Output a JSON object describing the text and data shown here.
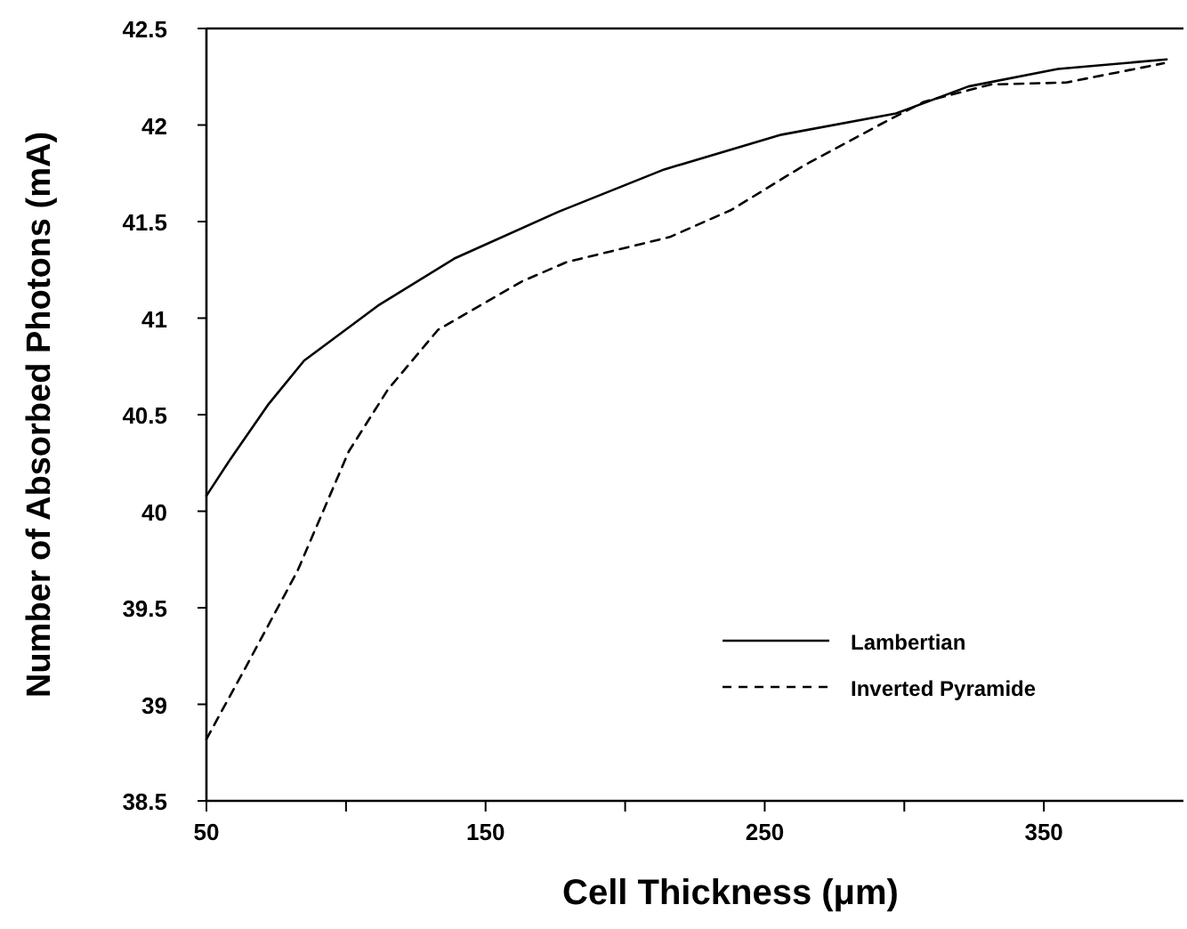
{
  "chart_data": {
    "type": "line",
    "xlabel": "Cell Thickness (μm)",
    "ylabel": "Number of Absorbed Photons (mA)",
    "xlim": [
      50,
      400
    ],
    "xticks": [
      50,
      {
        "value": 100,
        "label": null
      },
      150,
      {
        "value": 200,
        "label": null
      },
      250,
      {
        "value": 300,
        "label": null
      },
      350
    ],
    "ylim": [
      38.5,
      42.5
    ],
    "yticks": [
      38.5,
      39,
      39.5,
      40,
      40.5,
      41,
      41.5,
      42,
      42.5
    ],
    "grid": false,
    "legend": "bottom right",
    "marker": "none",
    "series": [
      {
        "name": "Lambertian",
        "color": "#000000",
        "line_style": "solid",
        "x": [
          50,
          58.6,
          72,
          85,
          112,
          139,
          176,
          214,
          256,
          297,
          323,
          355,
          394
        ],
        "values": [
          40.08,
          40.27,
          40.55,
          40.78,
          41.07,
          41.31,
          41.55,
          41.77,
          41.95,
          42.06,
          42.2,
          42.29,
          42.34
        ]
      },
      {
        "name": "Inverted Pyramide",
        "color": "#000000",
        "line_style": "dashed",
        "x": [
          50,
          64,
          82.6,
          101,
          115,
          133,
          163,
          179,
          216,
          238,
          264,
          291,
          307,
          331,
          358,
          393
        ],
        "values": [
          38.82,
          39.19,
          39.69,
          40.31,
          40.63,
          40.94,
          41.19,
          41.29,
          41.42,
          41.56,
          41.79,
          42.0,
          42.12,
          42.21,
          42.22,
          42.32
        ]
      }
    ]
  }
}
